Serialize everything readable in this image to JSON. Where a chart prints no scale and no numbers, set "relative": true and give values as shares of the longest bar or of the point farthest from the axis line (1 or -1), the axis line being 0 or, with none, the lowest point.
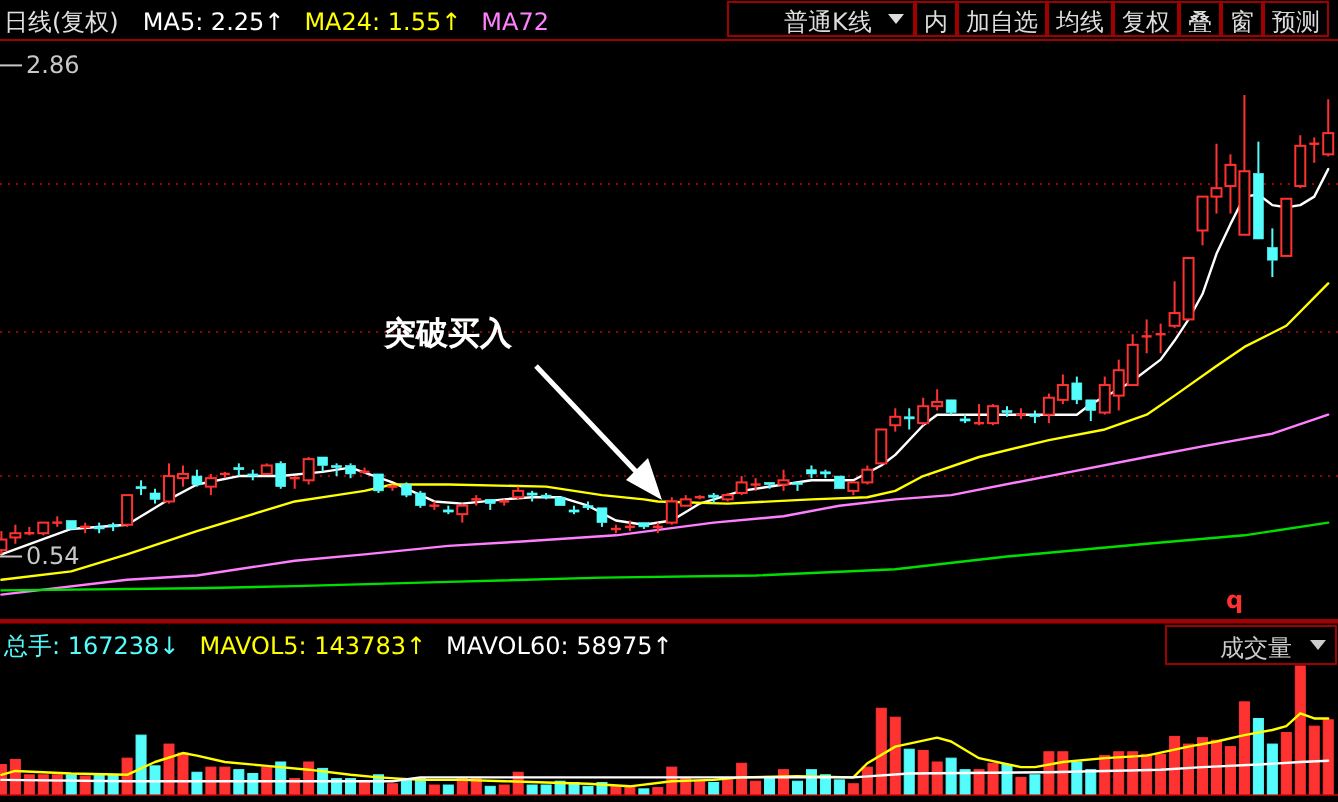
{
  "chart_data": [
    {
      "type": "candlestick",
      "title": "日线(复权)",
      "grid": "y",
      "ylim": [
        0.24,
        2.98
      ],
      "yticks": [
        {
          "value": 0.54,
          "label": "0.54"
        },
        {
          "value": 0.92,
          "label": null
        },
        {
          "value": 1.6,
          "label": null
        },
        {
          "value": 2.3,
          "label": null
        },
        {
          "value": 2.86,
          "label": "2.86"
        }
      ],
      "categories": [
        null,
        null,
        null,
        null,
        null,
        null,
        null,
        null,
        null,
        null,
        null,
        null,
        null,
        null,
        null,
        null,
        null,
        null,
        null,
        null,
        null,
        null,
        null,
        null,
        null,
        null,
        null,
        null,
        null,
        null,
        null,
        null,
        null,
        null,
        null,
        null,
        null,
        null,
        null,
        null,
        null,
        null,
        null,
        null,
        null,
        null,
        null,
        null,
        null,
        null,
        null,
        null,
        null,
        null,
        null,
        null,
        null,
        null,
        null,
        null,
        null,
        null,
        null,
        null,
        null,
        null,
        null,
        null,
        null,
        null,
        null,
        null,
        null,
        null,
        null,
        null,
        null,
        null,
        null,
        null,
        null,
        null,
        null,
        null,
        null,
        null,
        null,
        null,
        null,
        null,
        null,
        null,
        null,
        null,
        null,
        null
      ],
      "ohlc": [
        [
          0.57,
          0.66,
          0.55,
          0.62
        ],
        [
          0.63,
          0.69,
          0.6,
          0.65
        ],
        [
          0.65,
          0.68,
          0.64,
          0.65
        ],
        [
          0.65,
          0.7,
          0.64,
          0.7
        ],
        [
          0.7,
          0.73,
          0.68,
          0.7
        ],
        [
          0.71,
          0.71,
          0.67,
          0.67
        ],
        [
          0.68,
          0.7,
          0.65,
          0.68
        ],
        [
          0.68,
          0.7,
          0.65,
          0.67
        ],
        [
          0.69,
          0.7,
          0.66,
          0.68
        ],
        [
          0.69,
          0.83,
          0.68,
          0.83
        ],
        [
          0.87,
          0.9,
          0.83,
          0.86
        ],
        [
          0.84,
          0.86,
          0.79,
          0.81
        ],
        [
          0.8,
          0.98,
          0.79,
          0.92
        ],
        [
          0.91,
          0.97,
          0.87,
          0.93
        ],
        [
          0.92,
          0.95,
          0.87,
          0.88
        ],
        [
          0.87,
          0.93,
          0.83,
          0.91
        ],
        [
          0.93,
          0.94,
          0.91,
          0.93
        ],
        [
          0.96,
          0.98,
          0.92,
          0.95
        ],
        [
          0.93,
          0.95,
          0.9,
          0.92
        ],
        [
          0.93,
          0.98,
          0.93,
          0.97
        ],
        [
          0.98,
          0.99,
          0.86,
          0.87
        ],
        [
          0.91,
          0.92,
          0.86,
          0.91
        ],
        [
          0.9,
          1.01,
          0.88,
          1.0
        ],
        [
          1.01,
          1.01,
          0.94,
          0.97
        ],
        [
          0.97,
          0.98,
          0.92,
          0.96
        ],
        [
          0.97,
          0.98,
          0.91,
          0.93
        ],
        [
          0.94,
          0.96,
          0.93,
          0.94
        ],
        [
          0.93,
          0.93,
          0.84,
          0.85
        ],
        [
          0.87,
          0.88,
          0.85,
          0.87
        ],
        [
          0.88,
          0.89,
          0.82,
          0.83
        ],
        [
          0.84,
          0.85,
          0.77,
          0.78
        ],
        [
          0.78,
          0.8,
          0.76,
          0.78
        ],
        [
          0.76,
          0.78,
          0.74,
          0.75
        ],
        [
          0.74,
          0.79,
          0.7,
          0.78
        ],
        [
          0.81,
          0.83,
          0.78,
          0.81
        ],
        [
          0.81,
          0.81,
          0.76,
          0.79
        ],
        [
          0.8,
          0.81,
          0.78,
          0.8
        ],
        [
          0.82,
          0.87,
          0.81,
          0.85
        ],
        [
          0.84,
          0.85,
          0.8,
          0.83
        ],
        [
          0.83,
          0.84,
          0.81,
          0.82
        ],
        [
          0.82,
          0.82,
          0.78,
          0.78
        ],
        [
          0.76,
          0.78,
          0.74,
          0.75
        ],
        [
          0.78,
          0.8,
          0.76,
          0.77
        ],
        [
          0.77,
          0.77,
          0.68,
          0.7
        ],
        [
          0.67,
          0.69,
          0.65,
          0.67
        ],
        [
          0.68,
          0.71,
          0.66,
          0.68
        ],
        [
          0.7,
          0.7,
          0.67,
          0.68
        ],
        [
          0.68,
          0.7,
          0.65,
          0.68
        ],
        [
          0.7,
          0.82,
          0.69,
          0.8
        ],
        [
          0.78,
          0.83,
          0.78,
          0.81
        ],
        [
          0.82,
          0.83,
          0.81,
          0.82
        ],
        [
          0.83,
          0.84,
          0.79,
          0.82
        ],
        [
          0.81,
          0.84,
          0.8,
          0.83
        ],
        [
          0.84,
          0.92,
          0.83,
          0.89
        ],
        [
          0.88,
          0.91,
          0.85,
          0.88
        ],
        [
          0.89,
          0.89,
          0.86,
          0.88
        ],
        [
          0.88,
          0.95,
          0.85,
          0.9
        ],
        [
          0.89,
          0.89,
          0.85,
          0.88
        ],
        [
          0.95,
          0.97,
          0.91,
          0.93
        ],
        [
          0.94,
          0.95,
          0.91,
          0.93
        ],
        [
          0.92,
          0.92,
          0.86,
          0.86
        ],
        [
          0.85,
          0.89,
          0.83,
          0.89
        ],
        [
          0.89,
          0.97,
          0.88,
          0.95
        ],
        [
          0.98,
          1.14,
          0.98,
          1.14
        ],
        [
          1.16,
          1.24,
          1.13,
          1.2
        ],
        [
          1.2,
          1.24,
          1.14,
          1.19
        ],
        [
          1.17,
          1.29,
          1.16,
          1.25
        ],
        [
          1.25,
          1.33,
          1.23,
          1.27
        ],
        [
          1.28,
          1.28,
          1.21,
          1.22
        ],
        [
          1.19,
          1.21,
          1.17,
          1.18
        ],
        [
          1.17,
          1.26,
          1.16,
          1.17
        ],
        [
          1.17,
          1.26,
          1.16,
          1.25
        ],
        [
          1.23,
          1.25,
          1.2,
          1.22
        ],
        [
          1.21,
          1.24,
          1.19,
          1.21
        ],
        [
          1.21,
          1.23,
          1.17,
          1.2
        ],
        [
          1.21,
          1.31,
          1.17,
          1.29
        ],
        [
          1.28,
          1.4,
          1.26,
          1.35
        ],
        [
          1.36,
          1.39,
          1.26,
          1.28
        ],
        [
          1.28,
          1.28,
          1.18,
          1.23
        ],
        [
          1.22,
          1.39,
          1.21,
          1.35
        ],
        [
          1.3,
          1.47,
          1.23,
          1.42
        ],
        [
          1.35,
          1.59,
          1.35,
          1.54
        ],
        [
          1.58,
          1.66,
          1.5,
          1.58
        ],
        [
          1.59,
          1.64,
          1.5,
          1.59
        ],
        [
          1.63,
          1.84,
          1.62,
          1.69
        ],
        [
          1.66,
          1.95,
          1.66,
          1.95
        ],
        [
          2.08,
          2.24,
          2.01,
          2.24
        ],
        [
          2.24,
          2.49,
          2.16,
          2.28
        ],
        [
          2.29,
          2.44,
          2.16,
          2.39
        ],
        [
          2.06,
          2.72,
          2.06,
          2.36
        ],
        [
          2.35,
          2.5,
          2.04,
          2.04
        ],
        [
          2.0,
          2.09,
          1.86,
          1.94
        ],
        [
          1.96,
          2.23,
          1.96,
          2.23
        ],
        [
          2.29,
          2.53,
          2.28,
          2.48
        ],
        [
          2.49,
          2.52,
          2.4,
          2.49
        ],
        [
          2.44,
          2.7,
          2.43,
          2.54
        ]
      ],
      "series": [
        {
          "type": "line",
          "name": "MA5: 2.25↑",
          "color": "#ffffff",
          "values": [
            0.55,
            null,
            null,
            null,
            null,
            0.67,
            null,
            null,
            null,
            0.69,
            null,
            null,
            0.81,
            null,
            0.88,
            null,
            null,
            0.92,
            null,
            null,
            0.92,
            null,
            null,
            0.94,
            null,
            0.96,
            null,
            null,
            0.89,
            null,
            null,
            0.8,
            null,
            0.79,
            null,
            null,
            0.81,
            null,
            0.82,
            null,
            0.82,
            null,
            0.78,
            null,
            0.71,
            null,
            0.69,
            null,
            0.71,
            null,
            0.79,
            null,
            null,
            0.85,
            null,
            null,
            0.88,
            null,
            0.9,
            null,
            null,
            0.9,
            null,
            0.97,
            1.02,
            null,
            1.16,
            1.21,
            null,
            null,
            1.21,
            null,
            null,
            null,
            1.21,
            null,
            null,
            1.21,
            1.26,
            null,
            1.33,
            1.37,
            null,
            1.47,
            1.56,
            1.66,
            1.78,
            1.97,
            2.11,
            2.24,
            2.25,
            2.2,
            2.19,
            2.2,
            2.24,
            2.37
          ]
        },
        {
          "type": "line",
          "name": "MA24: 1.55↑",
          "color": "#ffff00",
          "values": [
            0.43,
            null,
            null,
            null,
            null,
            0.47,
            null,
            null,
            null,
            0.55,
            null,
            null,
            null,
            null,
            0.66,
            null,
            null,
            null,
            null,
            0.76,
            null,
            0.8,
            null,
            null,
            0.83,
            null,
            0.85,
            null,
            0.88,
            null,
            null,
            null,
            0.88,
            null,
            null,
            null,
            null,
            null,
            null,
            0.87,
            null,
            null,
            null,
            0.83,
            null,
            null,
            0.81,
            0.8,
            null,
            null,
            null,
            null,
            0.79,
            null,
            null,
            null,
            null,
            null,
            0.81,
            null,
            null,
            null,
            0.82,
            null,
            0.85,
            null,
            0.92,
            null,
            null,
            null,
            1.01,
            null,
            null,
            null,
            null,
            1.09,
            null,
            null,
            null,
            1.14,
            null,
            null,
            1.21,
            null,
            1.3,
            null,
            null,
            1.44,
            null,
            1.53,
            null,
            null,
            1.63,
            null,
            null,
            1.83
          ]
        },
        {
          "type": "line",
          "name": "MA72",
          "color": "#ff80ff",
          "values": [
            0.36,
            null,
            null,
            null,
            null,
            null,
            null,
            null,
            null,
            0.43,
            null,
            null,
            null,
            null,
            0.45,
            null,
            null,
            null,
            null,
            null,
            null,
            0.52,
            null,
            null,
            null,
            null,
            0.55,
            null,
            null,
            null,
            null,
            null,
            0.59,
            null,
            null,
            null,
            null,
            0.61,
            null,
            null,
            null,
            null,
            null,
            null,
            0.64,
            null,
            null,
            null,
            null,
            null,
            null,
            0.7,
            null,
            null,
            null,
            null,
            0.73,
            null,
            null,
            null,
            0.78,
            null,
            null,
            null,
            0.81,
            null,
            null,
            null,
            0.83,
            null,
            null,
            null,
            null,
            null,
            null,
            0.92,
            null,
            null,
            null,
            null,
            null,
            null,
            1.01,
            null,
            null,
            null,
            1.06,
            null,
            null,
            null,
            null,
            1.12,
            null,
            null,
            null,
            1.21
          ]
        },
        {
          "type": "line",
          "color": "#00e000",
          "values": [
            0.38,
            null,
            null,
            null,
            null,
            null,
            null,
            null,
            null,
            null,
            null,
            null,
            null,
            null,
            0.39,
            null,
            null,
            null,
            null,
            null,
            null,
            0.4,
            null,
            null,
            null,
            null,
            null,
            null,
            null,
            null,
            null,
            null,
            0.42,
            null,
            null,
            null,
            null,
            null,
            null,
            null,
            null,
            null,
            null,
            0.44,
            null,
            null,
            null,
            null,
            null,
            null,
            null,
            null,
            null,
            null,
            0.45,
            null,
            null,
            null,
            null,
            null,
            null,
            null,
            null,
            null,
            0.48,
            null,
            null,
            null,
            null,
            null,
            null,
            null,
            0.54,
            null,
            null,
            null,
            null,
            null,
            null,
            null,
            null,
            null,
            0.6,
            null,
            null,
            null,
            null,
            null,
            null,
            0.64,
            null,
            null,
            null,
            null,
            null,
            0.7
          ]
        }
      ],
      "annotations": [
        "普通K线",
        "内",
        "加自选",
        "均线",
        "复权",
        "叠",
        "窗",
        "预测",
        "突破买入",
        "q"
      ]
    },
    {
      "type": "bar",
      "relative": true,
      "categories": [
        null,
        null,
        null,
        null,
        null,
        null,
        null,
        null,
        null,
        null,
        null,
        null,
        null,
        null,
        null,
        null,
        null,
        null,
        null,
        null,
        null,
        null,
        null,
        null,
        null,
        null,
        null,
        null,
        null,
        null,
        null,
        null,
        null,
        null,
        null,
        null,
        null,
        null,
        null,
        null,
        null,
        null,
        null,
        null,
        null,
        null,
        null,
        null,
        null,
        null,
        null,
        null,
        null,
        null,
        null,
        null,
        null,
        null,
        null,
        null,
        null,
        null,
        null,
        null,
        null,
        null,
        null,
        null,
        null,
        null,
        null,
        null,
        null,
        null,
        null,
        null,
        null,
        null,
        null,
        null,
        null,
        null,
        null,
        null,
        null,
        null,
        null,
        null,
        null,
        null,
        null,
        null,
        null,
        null,
        null,
        null
      ],
      "series": [
        {
          "type": "bar",
          "name": "总手: 167238↓",
          "color": "#54fcfc",
          "values": [
            0.23,
            0.27,
            0.15,
            0.15,
            0.15,
            0.15,
            0.14,
            0.15,
            0.15,
            0.28,
            0.46,
            0.22,
            0.39,
            0.32,
            0.17,
            0.21,
            0.21,
            0.19,
            0.16,
            0.21,
            0.25,
            0.12,
            0.25,
            0.2,
            0.12,
            0.12,
            0.09,
            0.15,
            0.08,
            0.11,
            0.12,
            0.07,
            0.07,
            0.12,
            0.12,
            0.06,
            0.07,
            0.17,
            0.07,
            0.07,
            0.1,
            0.09,
            0.06,
            0.09,
            0.06,
            0.06,
            0.04,
            0.05,
            0.21,
            0.12,
            0.1,
            0.09,
            0.11,
            0.24,
            0.1,
            0.13,
            0.19,
            0.1,
            0.19,
            0.15,
            0.11,
            0.08,
            0.21,
            0.67,
            0.6,
            0.35,
            0.34,
            0.25,
            0.28,
            0.19,
            0.19,
            0.24,
            0.23,
            0.13,
            0.15,
            0.33,
            0.33,
            0.25,
            0.19,
            0.3,
            0.33,
            0.33,
            0.31,
            0.31,
            0.45,
            0.39,
            0.44,
            0.42,
            0.37,
            0.72,
            0.59,
            0.39,
            0.48,
            1,
            0.53,
            0.58
          ],
          "colors": [
            "#ff3232",
            "#ff3232",
            "#ff3232",
            "#ff3232",
            "#ff3232",
            "#54fcfc",
            "#ff3232",
            "#54fcfc",
            "#54fcfc",
            "#ff3232",
            "#54fcfc",
            "#54fcfc",
            "#ff3232",
            "#ff3232",
            "#54fcfc",
            "#ff3232",
            "#ff3232",
            "#54fcfc",
            "#54fcfc",
            "#ff3232",
            "#54fcfc",
            "#ff3232",
            "#ff3232",
            "#54fcfc",
            "#54fcfc",
            "#54fcfc",
            "#ff3232",
            "#54fcfc",
            "#ff3232",
            "#54fcfc",
            "#54fcfc",
            "#ff3232",
            "#54fcfc",
            "#ff3232",
            "#ff3232",
            "#54fcfc",
            "#ff3232",
            "#ff3232",
            "#54fcfc",
            "#54fcfc",
            "#54fcfc",
            "#54fcfc",
            "#54fcfc",
            "#54fcfc",
            "#ff3232",
            "#ff3232",
            "#54fcfc",
            "#ff3232",
            "#ff3232",
            "#ff3232",
            "#ff3232",
            "#54fcfc",
            "#ff3232",
            "#ff3232",
            "#ff3232",
            "#54fcfc",
            "#ff3232",
            "#54fcfc",
            "#54fcfc",
            "#54fcfc",
            "#54fcfc",
            "#ff3232",
            "#ff3232",
            "#ff3232",
            "#ff3232",
            "#54fcfc",
            "#ff3232",
            "#ff3232",
            "#54fcfc",
            "#54fcfc",
            "#ff3232",
            "#ff3232",
            "#54fcfc",
            "#ff3232",
            "#54fcfc",
            "#ff3232",
            "#ff3232",
            "#54fcfc",
            "#54fcfc",
            "#ff3232",
            "#ff3232",
            "#ff3232",
            "#ff3232",
            "#ff3232",
            "#ff3232",
            "#ff3232",
            "#ff3232",
            "#ff3232",
            "#ff3232",
            "#ff3232",
            "#54fcfc",
            "#54fcfc",
            "#ff3232",
            "#ff3232",
            "#ff3232",
            "#ff3232"
          ]
        },
        {
          "type": "line",
          "name": "MAVOL5: 143783↑",
          "color": "#ffff00",
          "values": [
            0.15,
            0.18,
            null,
            null,
            null,
            0.16,
            null,
            null,
            null,
            0.15,
            null,
            0.25,
            null,
            0.32,
            0.3,
            null,
            0.25,
            null,
            null,
            0.22,
            null,
            null,
            0.19,
            null,
            null,
            0.15,
            null,
            0.13,
            null,
            null,
            0.11,
            null,
            null,
            0.11,
            null,
            null,
            0.1,
            null,
            null,
            0.09,
            null,
            null,
            0.08,
            null,
            null,
            0.06,
            null,
            null,
            0.1,
            null,
            null,
            0.11,
            null,
            0.13,
            null,
            null,
            null,
            0.14,
            null,
            null,
            null,
            0.13,
            0.24,
            null,
            0.37,
            null,
            null,
            0.44,
            0.41,
            null,
            0.28,
            null,
            null,
            0.21,
            0.21,
            null,
            0.25,
            null,
            null,
            0.28,
            null,
            null,
            0.3,
            null,
            null,
            0.37,
            null,
            0.41,
            null,
            0.46,
            null,
            0.5,
            0.53,
            0.63,
            0.59,
            0.59
          ]
        },
        {
          "type": "line",
          "name": "MAVOL60: 58975↑",
          "color": "#ffffff",
          "values": [
            0.11,
            null,
            null,
            null,
            null,
            null,
            null,
            null,
            null,
            0.1,
            null,
            null,
            null,
            null,
            null,
            null,
            null,
            null,
            null,
            null,
            null,
            null,
            null,
            null,
            null,
            null,
            null,
            null,
            0.1,
            null,
            0.13,
            null,
            null,
            null,
            null,
            null,
            null,
            null,
            null,
            null,
            null,
            null,
            null,
            null,
            null,
            null,
            null,
            null,
            null,
            null,
            null,
            null,
            null,
            null,
            null,
            null,
            null,
            null,
            null,
            null,
            null,
            0.13,
            null,
            null,
            null,
            0.16,
            null,
            null,
            null,
            null,
            null,
            null,
            null,
            null,
            null,
            0.17,
            null,
            null,
            null,
            null,
            null,
            null,
            null,
            0.19,
            null,
            null,
            0.21,
            null,
            null,
            null,
            0.23,
            null,
            null,
            0.25,
            null,
            0.26
          ]
        }
      ],
      "annotations": [
        "成交量"
      ]
    }
  ]
}
